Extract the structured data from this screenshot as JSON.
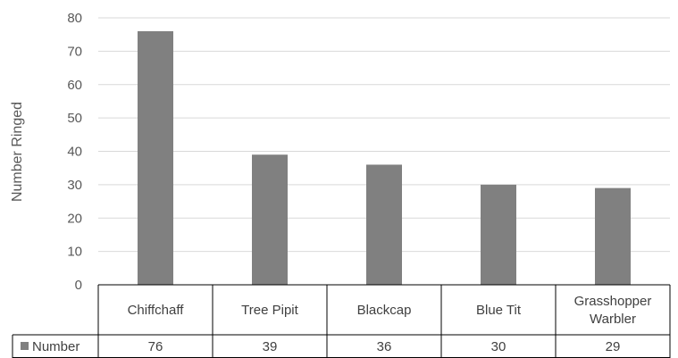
{
  "chart_data": {
    "type": "bar",
    "title": "",
    "xlabel": "",
    "ylabel": "Number Ringed",
    "ylim": [
      0,
      80
    ],
    "yticks": [
      0,
      10,
      20,
      30,
      40,
      50,
      60,
      70,
      80
    ],
    "grid": true,
    "legend_position": "data-table",
    "categories": [
      "Chiffchaff",
      "Tree Pipit",
      "Blackcap",
      "Blue Tit",
      "Grasshopper Warbler"
    ],
    "category_lines": [
      [
        "Chiffchaff"
      ],
      [
        "Tree Pipit"
      ],
      [
        "Blackcap"
      ],
      [
        "Blue Tit"
      ],
      [
        "Grasshopper",
        "Warbler"
      ]
    ],
    "series": [
      {
        "name": "Number",
        "values": [
          76,
          39,
          36,
          30,
          29
        ],
        "color": "#808080"
      }
    ],
    "colors": {
      "bar": "#808080",
      "grid": "#d9d9d9",
      "table_border": "#000000",
      "text": "#595959"
    }
  }
}
